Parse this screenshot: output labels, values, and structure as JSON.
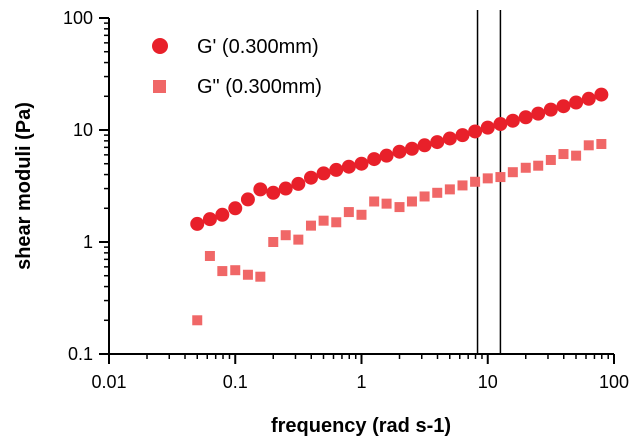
{
  "chart_data": {
    "type": "scatter",
    "xscale": "log",
    "yscale": "log",
    "xlabel": "frequency (rad s-1)",
    "ylabel": "shear moduli (Pa)",
    "xlim": [
      0.01,
      100
    ],
    "ylim": [
      0.1,
      100
    ],
    "xticks": [
      0.01,
      0.1,
      1,
      10,
      100
    ],
    "xtick_labels": [
      "0.01",
      "0.1",
      "1",
      "10",
      "100"
    ],
    "yticks": [
      0.1,
      1,
      10,
      100
    ],
    "ytick_labels": [
      "0.1",
      "1",
      "10",
      "100"
    ],
    "grid": false,
    "legend_position": "top-left",
    "vertical_lines": [
      8.3,
      12.6
    ],
    "series": [
      {
        "name": "G' (0.300mm)",
        "marker": "circle",
        "color": "#e8202a",
        "x": [
          0.05,
          0.063,
          0.079,
          0.1,
          0.126,
          0.158,
          0.2,
          0.251,
          0.316,
          0.398,
          0.501,
          0.631,
          0.794,
          1.0,
          1.26,
          1.58,
          2.0,
          2.51,
          3.16,
          3.98,
          5.01,
          6.31,
          7.94,
          10.0,
          12.6,
          15.8,
          20.0,
          25.1,
          31.6,
          39.8,
          50.1,
          63.1,
          79.4
        ],
        "y": [
          1.45,
          1.6,
          1.75,
          2.0,
          2.4,
          2.95,
          2.75,
          3.0,
          3.3,
          3.75,
          4.1,
          4.4,
          4.7,
          5.0,
          5.5,
          5.9,
          6.4,
          6.8,
          7.3,
          7.8,
          8.4,
          9.0,
          9.7,
          10.5,
          11.3,
          12.1,
          13.0,
          14.0,
          15.2,
          16.3,
          17.6,
          19.0,
          20.7
        ]
      },
      {
        "name": "G\" (0.300mm)",
        "marker": "square",
        "color": "#f06767",
        "x": [
          0.05,
          0.063,
          0.079,
          0.1,
          0.126,
          0.158,
          0.2,
          0.251,
          0.316,
          0.398,
          0.501,
          0.631,
          0.794,
          1.0,
          1.26,
          1.58,
          2.0,
          2.51,
          3.16,
          3.98,
          5.01,
          6.31,
          7.94,
          10.0,
          12.6,
          15.8,
          20.0,
          25.1,
          31.6,
          39.8,
          50.1,
          63.1,
          79.4
        ],
        "y": [
          0.2,
          0.75,
          0.55,
          0.56,
          0.51,
          0.49,
          1.0,
          1.15,
          1.05,
          1.4,
          1.55,
          1.5,
          1.85,
          1.75,
          2.3,
          2.2,
          2.05,
          2.3,
          2.55,
          2.75,
          2.95,
          3.2,
          3.45,
          3.7,
          3.8,
          4.2,
          4.6,
          4.8,
          5.4,
          6.1,
          5.9,
          7.3,
          7.5
        ]
      }
    ]
  }
}
